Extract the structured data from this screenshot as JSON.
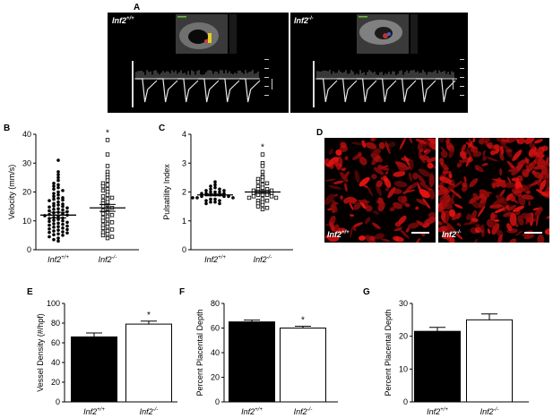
{
  "panels": {
    "A": {
      "letter": "A",
      "left_genotype": {
        "base": "Inf2",
        "sup": "+/+"
      },
      "right_genotype": {
        "base": "Inf2",
        "sup": "-/-"
      }
    },
    "B": {
      "letter": "B"
    },
    "C": {
      "letter": "C"
    },
    "D": {
      "letter": "D",
      "left_genotype": {
        "base": "Inf2",
        "sup": "+/+"
      },
      "right_genotype": {
        "base": "Inf2",
        "sup": "-/-"
      }
    },
    "E": {
      "letter": "E"
    },
    "F": {
      "letter": "F"
    },
    "G": {
      "letter": "G"
    }
  },
  "colors": {
    "ultrasound_bg": "#000000",
    "fluorescence": "#d01818",
    "bar_fill": "#000000"
  },
  "chart_data": [
    {
      "id": "B",
      "type": "scatter",
      "ylabel": "Velocity (mm/s)",
      "ylim": [
        0,
        40
      ],
      "yticks": [
        0,
        10,
        20,
        30,
        40
      ],
      "categories": [
        {
          "base": "Inf2",
          "sup": "+/+"
        },
        {
          "base": "Inf2",
          "sup": "-/-"
        }
      ],
      "markers": [
        "filled-circle",
        "open-square"
      ],
      "mean": [
        12,
        14.5
      ],
      "sem": [
        1.0,
        1.2
      ],
      "significance": [
        "",
        "*"
      ],
      "values": [
        [
          31,
          27,
          26,
          25,
          24,
          23,
          22.5,
          22,
          21.5,
          21,
          20.5,
          20,
          19.5,
          19,
          18.5,
          18,
          17.8,
          17.5,
          17.2,
          17,
          16.5,
          16,
          15.8,
          15.5,
          15.2,
          15,
          14.8,
          14.5,
          14.2,
          14,
          13.8,
          13.5,
          13.2,
          13,
          12.8,
          12.5,
          12.2,
          12,
          11.8,
          11.5,
          11.2,
          11,
          10.8,
          10.5,
          10.2,
          10,
          9.8,
          9.5,
          9.2,
          9,
          8.8,
          8.5,
          8.2,
          8,
          7.8,
          7.5,
          7.2,
          7,
          6.8,
          6.5,
          6.2,
          6,
          5.8,
          5.5,
          5.2,
          5,
          4.5,
          4,
          3.5,
          3
        ],
        [
          38,
          33,
          29,
          27,
          26,
          25,
          24,
          23,
          22.5,
          22,
          21,
          20.5,
          20,
          19,
          18.5,
          18,
          17.5,
          17,
          16.5,
          16,
          15.5,
          15,
          14.5,
          14,
          13.5,
          13,
          12.5,
          12,
          11.5,
          11,
          10.5,
          10,
          9.5,
          9,
          8.5,
          8,
          7.5,
          7,
          6.5,
          6,
          5.5,
          5,
          4.5,
          4
        ]
      ]
    },
    {
      "id": "C",
      "type": "scatter",
      "ylabel": "Pulsatility Index",
      "ylim": [
        0,
        4
      ],
      "yticks": [
        0,
        1,
        2,
        3,
        4
      ],
      "categories": [
        {
          "base": "Inf2",
          "sup": "+/+"
        },
        {
          "base": "Inf2",
          "sup": "-/-"
        }
      ],
      "markers": [
        "filled-circle",
        "open-square"
      ],
      "mean": [
        1.9,
        2.0
      ],
      "sem": [
        0.03,
        0.05
      ],
      "significance": [
        "",
        "*"
      ],
      "values": [
        [
          2.35,
          2.25,
          2.2,
          2.15,
          2.1,
          2.1,
          2.05,
          2.05,
          2.0,
          2.0,
          2.0,
          1.95,
          1.95,
          1.95,
          1.9,
          1.9,
          1.9,
          1.9,
          1.85,
          1.85,
          1.85,
          1.8,
          1.8,
          1.8,
          1.75,
          1.75,
          1.7,
          1.7,
          1.65,
          1.65,
          1.6,
          1.6
        ],
        [
          3.3,
          3.0,
          2.9,
          2.7,
          2.55,
          2.5,
          2.45,
          2.4,
          2.35,
          2.3,
          2.25,
          2.2,
          2.15,
          2.1,
          2.1,
          2.05,
          2.05,
          2.0,
          2.0,
          2.0,
          1.95,
          1.95,
          1.9,
          1.9,
          1.9,
          1.85,
          1.85,
          1.8,
          1.8,
          1.75,
          1.7,
          1.7,
          1.65,
          1.6,
          1.55,
          1.5,
          1.45,
          1.4
        ]
      ]
    },
    {
      "id": "E",
      "type": "bar",
      "ylabel": "Vessel Density (#/hpf)",
      "ylim": [
        0,
        100
      ],
      "yticks": [
        0,
        20,
        40,
        60,
        80,
        100
      ],
      "categories": [
        {
          "base": "Inf2",
          "sup": "+/+"
        },
        {
          "base": "Inf2",
          "sup": "-/-"
        }
      ],
      "values": [
        66,
        79
      ],
      "errors": [
        4,
        3
      ],
      "fills": [
        "#000000",
        "#ffffff"
      ],
      "significance": [
        "",
        "*"
      ]
    },
    {
      "id": "F",
      "type": "bar",
      "ylabel": "Percent Placental Depth",
      "ylim": [
        0,
        80
      ],
      "yticks": [
        0,
        20,
        40,
        60,
        80
      ],
      "categories": [
        {
          "base": "Inf2",
          "sup": "+/+"
        },
        {
          "base": "Inf2",
          "sup": "-/-"
        }
      ],
      "values": [
        65,
        60
      ],
      "errors": [
        1.5,
        1.5
      ],
      "fills": [
        "#000000",
        "#ffffff"
      ],
      "significance": [
        "",
        "*"
      ]
    },
    {
      "id": "G",
      "type": "bar",
      "ylabel": "Percent Placental Depth",
      "ylim": [
        0,
        30
      ],
      "yticks": [
        0,
        10,
        20,
        30
      ],
      "categories": [
        {
          "base": "Inf2",
          "sup": "+/+"
        },
        {
          "base": "Inf2",
          "sup": "-/-"
        }
      ],
      "values": [
        21.5,
        25
      ],
      "errors": [
        1.2,
        1.8
      ],
      "fills": [
        "#000000",
        "#ffffff"
      ],
      "significance": [
        "",
        ""
      ]
    }
  ]
}
